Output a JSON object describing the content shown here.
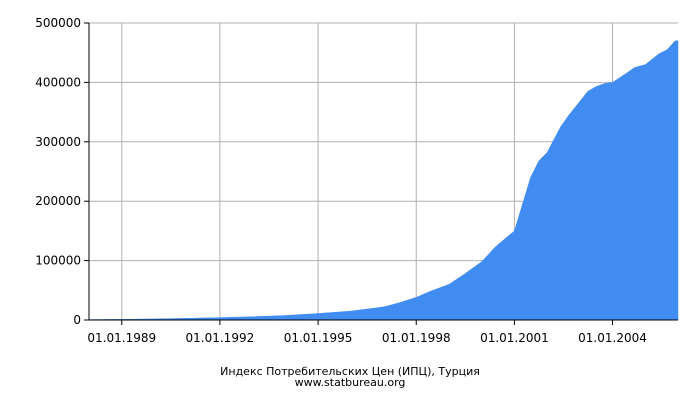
{
  "chart_data": {
    "type": "area",
    "title": "Индекс Потребительских Цен (ИПЦ), Турция",
    "source": "www.statbureau.org",
    "xlabel": "",
    "ylabel": "",
    "ylim": [
      0,
      500000
    ],
    "xlim": [
      "1988-01-01",
      "2006-01-01"
    ],
    "y_ticks": [
      0,
      100000,
      200000,
      300000,
      400000,
      500000
    ],
    "y_tick_labels": [
      "0",
      "100000",
      "200000",
      "300000",
      "400000",
      "500000"
    ],
    "x_ticks": [
      "1989-01-01",
      "1992-01-01",
      "1995-01-01",
      "1998-01-01",
      "2001-01-01",
      "2004-01-01"
    ],
    "x_tick_labels": [
      "01.01.1989",
      "01.01.1992",
      "01.01.1995",
      "01.01.1998",
      "01.01.2001",
      "01.01.2004"
    ],
    "grid": true,
    "colors": {
      "area": "#418cf0",
      "grid": "#b0b0b0",
      "axis": "#000000"
    },
    "series": [
      {
        "x": [
          "1988-01-01",
          "1989-01-01",
          "1990-01-01",
          "1991-01-01",
          "1992-01-01",
          "1993-01-01",
          "1994-01-01",
          "1995-01-01",
          "1996-01-01",
          "1997-01-01",
          "1997-06-01",
          "1998-01-01",
          "1998-06-01",
          "1999-01-01",
          "1999-06-01",
          "2000-01-01",
          "2000-06-01",
          "2001-01-01",
          "2001-04-01",
          "2001-07-01",
          "2001-10-01",
          "2002-01-01",
          "2002-06-01",
          "2002-09-01",
          "2003-01-01",
          "2003-04-01",
          "2003-07-01",
          "2003-10-01",
          "2004-01-01",
          "2004-06-01",
          "2004-09-01",
          "2005-01-01",
          "2005-06-01",
          "2005-09-01",
          "2005-12-01"
        ],
        "values": [
          700,
          1200,
          1900,
          2900,
          4100,
          5500,
          7500,
          11000,
          15000,
          22000,
          28000,
          38000,
          48000,
          60000,
          75000,
          98000,
          123000,
          150000,
          195000,
          240000,
          268000,
          282000,
          325000,
          345000,
          368000,
          385000,
          393000,
          398000,
          400000,
          415000,
          425000,
          430000,
          448000,
          455000,
          470000
        ]
      }
    ]
  }
}
